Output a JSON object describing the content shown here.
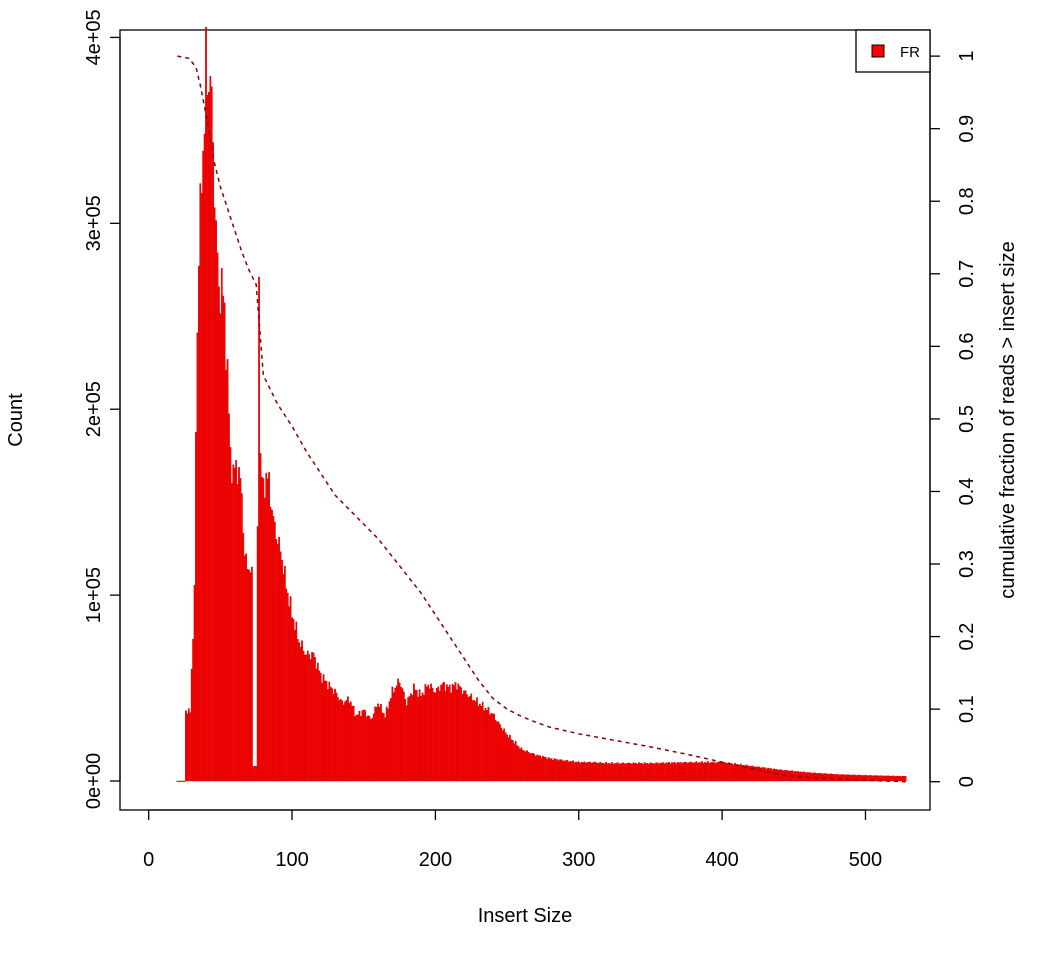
{
  "chart_data": {
    "type": "bar",
    "xlabel": "Insert Size",
    "ylabel": "Count",
    "y2label": "cumulative fraction of reads > insert size",
    "xlim": [
      -20,
      545
    ],
    "ylim": [
      -15600,
      404000
    ],
    "y2lim": [
      -0.039,
      1.036
    ],
    "xticks": [
      0,
      100,
      200,
      300,
      400,
      500
    ],
    "yticks": [
      0,
      100000,
      200000,
      300000,
      400000
    ],
    "ytick_labels": [
      "0e+00",
      "1e+05",
      "2e+05",
      "3e+05",
      "4e+05"
    ],
    "y2ticks": [
      0,
      0.1,
      0.2,
      0.3,
      0.4,
      0.5,
      0.6,
      0.7,
      0.8,
      0.9,
      1
    ],
    "y2tick_labels": [
      "0",
      "0.1",
      "0.2",
      "0.3",
      "0.4",
      "0.5",
      "0.6",
      "0.7",
      "0.8",
      "0.9",
      "1"
    ],
    "legend": {
      "entries": [
        "FR"
      ],
      "placement": "top-right",
      "color": "#ff0000"
    },
    "histogram": {
      "name": "FR",
      "color": "#ff0000",
      "x_min": 20,
      "x_max": 528,
      "keypoints": [
        [
          20,
          0
        ],
        [
          25,
          0
        ],
        [
          26,
          38000
        ],
        [
          29,
          37000
        ],
        [
          30,
          60000
        ],
        [
          32,
          100000
        ],
        [
          33,
          190000
        ],
        [
          35,
          290000
        ],
        [
          37,
          320000
        ],
        [
          39,
          360000
        ],
        [
          40,
          388000
        ],
        [
          41,
          370000
        ],
        [
          43,
          385000
        ],
        [
          45,
          340000
        ],
        [
          47,
          300000
        ],
        [
          49,
          260000
        ],
        [
          51,
          270000
        ],
        [
          53,
          250000
        ],
        [
          55,
          220000
        ],
        [
          57,
          175000
        ],
        [
          59,
          165000
        ],
        [
          61,
          170000
        ],
        [
          63,
          165000
        ],
        [
          65,
          155000
        ],
        [
          67,
          120000
        ],
        [
          70,
          115000
        ],
        [
          72,
          110000
        ],
        [
          73,
          8000
        ],
        [
          75,
          8000
        ],
        [
          76,
          130000
        ],
        [
          77,
          285000
        ],
        [
          78,
          175000
        ],
        [
          80,
          155000
        ],
        [
          82,
          165000
        ],
        [
          84,
          160000
        ],
        [
          87,
          140000
        ],
        [
          90,
          130000
        ],
        [
          93,
          120000
        ],
        [
          96,
          105000
        ],
        [
          100,
          90000
        ],
        [
          105,
          75000
        ],
        [
          110,
          68000
        ],
        [
          115,
          68000
        ],
        [
          120,
          57000
        ],
        [
          125,
          52000
        ],
        [
          130,
          48000
        ],
        [
          135,
          42000
        ],
        [
          140,
          44000
        ],
        [
          145,
          35000
        ],
        [
          150,
          38000
        ],
        [
          155,
          33000
        ],
        [
          160,
          42000
        ],
        [
          165,
          35000
        ],
        [
          170,
          48000
        ],
        [
          175,
          54000
        ],
        [
          180,
          42000
        ],
        [
          185,
          50000
        ],
        [
          190,
          46000
        ],
        [
          195,
          52000
        ],
        [
          200,
          48000
        ],
        [
          205,
          52000
        ],
        [
          210,
          50000
        ],
        [
          215,
          52000
        ],
        [
          220,
          48000
        ],
        [
          225,
          45000
        ],
        [
          230,
          42000
        ],
        [
          235,
          39000
        ],
        [
          240,
          36000
        ],
        [
          245,
          30000
        ],
        [
          250,
          25000
        ],
        [
          255,
          21000
        ],
        [
          260,
          17000
        ],
        [
          270,
          14000
        ],
        [
          280,
          12000
        ],
        [
          290,
          11000
        ],
        [
          300,
          10000
        ],
        [
          310,
          10000
        ],
        [
          320,
          9500
        ],
        [
          350,
          9500
        ],
        [
          380,
          10000
        ],
        [
          400,
          10000
        ],
        [
          420,
          8000
        ],
        [
          440,
          6000
        ],
        [
          460,
          4500
        ],
        [
          480,
          3500
        ],
        [
          500,
          3000
        ],
        [
          528,
          2500
        ]
      ]
    },
    "cumulative": {
      "name": "cumulative fraction of reads > insert size",
      "color": "#8b0000",
      "style": "dashed",
      "points": [
        [
          20,
          1.0
        ],
        [
          28,
          0.997
        ],
        [
          33,
          0.985
        ],
        [
          36,
          0.96
        ],
        [
          40,
          0.92
        ],
        [
          45,
          0.86
        ],
        [
          50,
          0.82
        ],
        [
          55,
          0.79
        ],
        [
          60,
          0.76
        ],
        [
          65,
          0.73
        ],
        [
          70,
          0.705
        ],
        [
          75,
          0.685
        ],
        [
          80,
          0.56
        ],
        [
          90,
          0.52
        ],
        [
          100,
          0.49
        ],
        [
          110,
          0.455
        ],
        [
          120,
          0.425
        ],
        [
          130,
          0.395
        ],
        [
          140,
          0.375
        ],
        [
          150,
          0.355
        ],
        [
          160,
          0.335
        ],
        [
          170,
          0.31
        ],
        [
          180,
          0.285
        ],
        [
          190,
          0.26
        ],
        [
          200,
          0.23
        ],
        [
          210,
          0.2
        ],
        [
          220,
          0.17
        ],
        [
          230,
          0.14
        ],
        [
          240,
          0.115
        ],
        [
          250,
          0.1
        ],
        [
          260,
          0.09
        ],
        [
          270,
          0.082
        ],
        [
          280,
          0.075
        ],
        [
          300,
          0.066
        ],
        [
          325,
          0.057
        ],
        [
          350,
          0.048
        ],
        [
          375,
          0.038
        ],
        [
          400,
          0.027
        ],
        [
          420,
          0.018
        ],
        [
          440,
          0.01
        ],
        [
          460,
          0.006
        ],
        [
          480,
          0.004
        ],
        [
          500,
          0.002
        ],
        [
          528,
          0.0
        ]
      ]
    }
  }
}
